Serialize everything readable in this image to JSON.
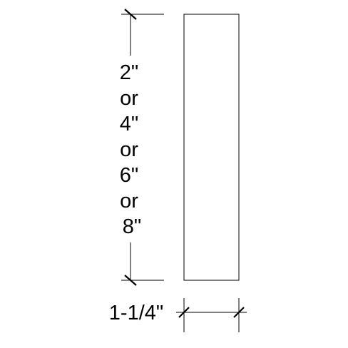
{
  "height_label_lines": [
    "2\"",
    "or",
    "4\"",
    "or",
    "6\"",
    "or",
    "8\""
  ],
  "width_label": "1-1/4\"",
  "colors": {
    "line": "#000000",
    "background": "#ffffff"
  }
}
